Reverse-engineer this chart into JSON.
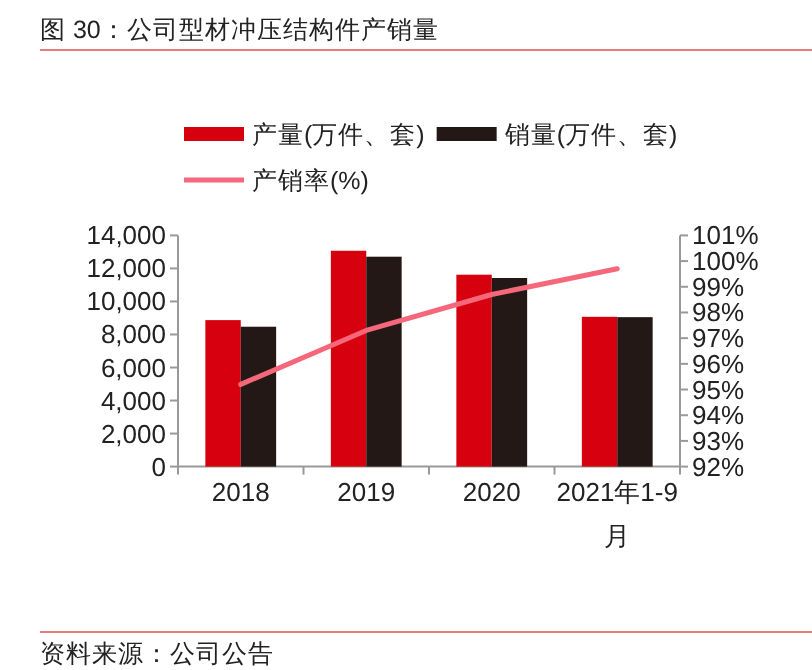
{
  "chart_data": {
    "type": "bar",
    "title": "图 30：公司型材冲压结构件产销量",
    "categories": [
      "2018",
      "2019",
      "2020",
      "2021年1-9月"
    ],
    "series": [
      {
        "name": "产量(万件、套)",
        "color": "#d7000f",
        "values": [
          8870,
          13070,
          11620,
          9070
        ]
      },
      {
        "name": "销量(万件、套)",
        "color": "#231815",
        "values": [
          8470,
          12710,
          11420,
          9050
        ]
      },
      {
        "name": "产销率(%)",
        "type": "line",
        "axis": "y2",
        "color": "#f5677a",
        "values": [
          95.2,
          97.3,
          98.7,
          99.7
        ]
      }
    ],
    "ylim": [
      0,
      14000
    ],
    "yticks": [
      0,
      {
        "value": 2000,
        "label": "2,000"
      },
      {
        "value": 4000,
        "label": "4,000"
      },
      {
        "value": 6000,
        "label": "6,000"
      },
      {
        "value": 8000,
        "label": "8,000"
      },
      {
        "value": 10000,
        "label": "10,000"
      },
      {
        "value": 12000,
        "label": "12,000"
      },
      {
        "value": 14000,
        "label": "14,000"
      }
    ],
    "y2lim": [
      92,
      101
    ],
    "y2ticks": [
      {
        "value": 92,
        "label": "92%"
      },
      {
        "value": 93,
        "label": "93%"
      },
      {
        "value": 94,
        "label": "94%"
      },
      {
        "value": 95,
        "label": "95%"
      },
      {
        "value": 96,
        "label": "96%"
      },
      {
        "value": 97,
        "label": "97%"
      },
      {
        "value": 98,
        "label": "98%"
      },
      {
        "value": 99,
        "label": "99%"
      },
      {
        "value": 100,
        "label": "100%"
      },
      {
        "value": 101,
        "label": "101%"
      }
    ],
    "legend": "top",
    "grid": false,
    "marker": "none",
    "annotations": [
      "资料来源：公司公告"
    ]
  }
}
